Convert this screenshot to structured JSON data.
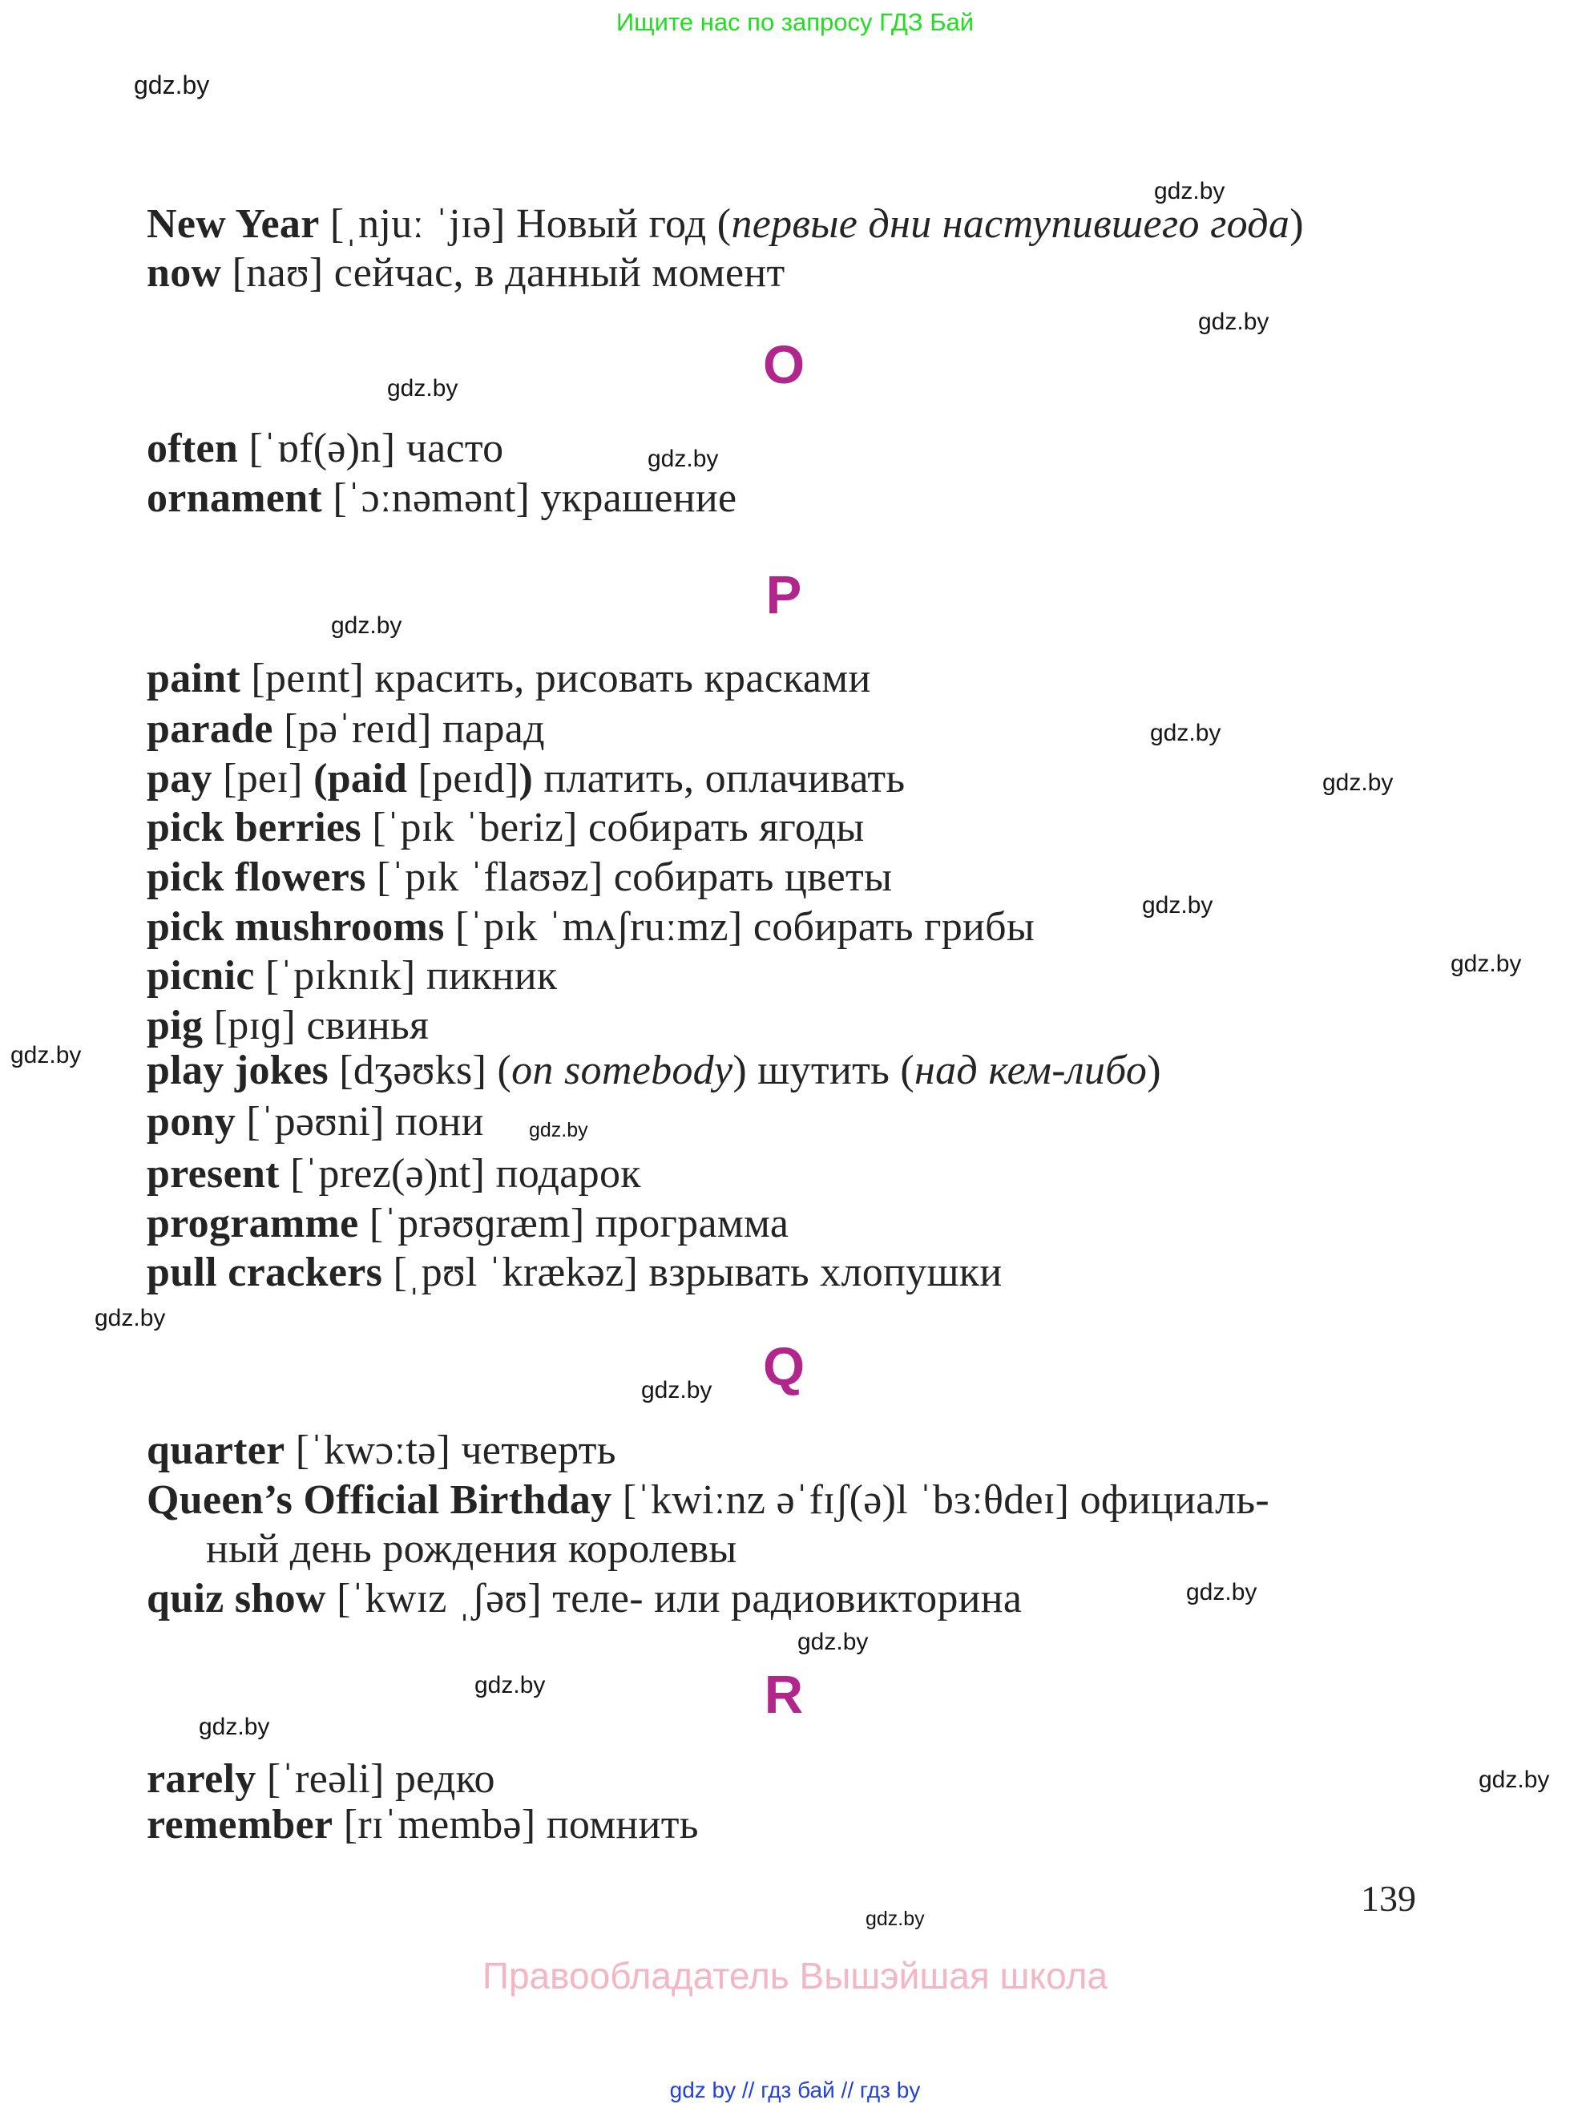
{
  "page": {
    "top_banner": "Ищите нас по запросу ГДЗ Бай",
    "watermark": "gdz.by",
    "page_number": "139",
    "copyright": "Правообладатель Вышэйшая школа",
    "footer_links": "gdz by  //  гдз бай  //  гдз by"
  },
  "colors": {
    "section_letter": "#b0268b",
    "banner_green": "#1fdf1f",
    "copyright_pink": "#f5b6c4",
    "footer_blue": "#2140e0",
    "body_text": "#242424"
  },
  "sections": [
    {
      "letter": "",
      "entries": [
        {
          "segments": [
            {
              "s": "b",
              "t": "New Year"
            },
            {
              "s": "r",
              "t": " [ˌnjuː ˈjɪə] Новый год ("
            },
            {
              "s": "i",
              "t": "первые дни наступившего года"
            },
            {
              "s": "r",
              "t": ")"
            }
          ]
        },
        {
          "segments": [
            {
              "s": "b",
              "t": "now"
            },
            {
              "s": "r",
              "t": " [naʊ]  сейчас, в данный момент"
            }
          ]
        }
      ]
    },
    {
      "letter": "O",
      "entries": [
        {
          "segments": [
            {
              "s": "b",
              "t": "often"
            },
            {
              "s": "r",
              "t": " [ˈɒf(ə)n] часто"
            }
          ]
        },
        {
          "segments": [
            {
              "s": "b",
              "t": "ornament"
            },
            {
              "s": "r",
              "t": " [ˈɔːnəmənt] украшение"
            }
          ]
        }
      ]
    },
    {
      "letter": "P",
      "entries": [
        {
          "segments": [
            {
              "s": "b",
              "t": "paint"
            },
            {
              "s": "r",
              "t": " [peɪnt] красить, рисовать красками"
            }
          ]
        },
        {
          "segments": [
            {
              "s": "b",
              "t": "parade"
            },
            {
              "s": "r",
              "t": " [pəˈreɪd] парад"
            }
          ]
        },
        {
          "segments": [
            {
              "s": "b",
              "t": "pay"
            },
            {
              "s": "r",
              "t": " [peɪ] "
            },
            {
              "s": "b",
              "t": "(paid"
            },
            {
              "s": "r",
              "t": " [peɪd]"
            },
            {
              "s": "b",
              "t": ")"
            },
            {
              "s": "r",
              "t": " платить, оплачивать"
            }
          ]
        },
        {
          "segments": [
            {
              "s": "b",
              "t": "pick berries"
            },
            {
              "s": "r",
              "t": " [ˈpɪk ˈberiz] собирать ягоды"
            }
          ]
        },
        {
          "segments": [
            {
              "s": "b",
              "t": "pick flowers"
            },
            {
              "s": "r",
              "t": " [ˈpɪk ˈflaʊəz] собирать цветы"
            }
          ]
        },
        {
          "segments": [
            {
              "s": "b",
              "t": "pick mushrooms"
            },
            {
              "s": "r",
              "t": " [ˈpɪk ˈmʌʃruːmz] собирать грибы"
            }
          ]
        },
        {
          "segments": [
            {
              "s": "b",
              "t": "picnic"
            },
            {
              "s": "r",
              "t": " [ˈpɪknɪk] пикник"
            }
          ]
        },
        {
          "segments": [
            {
              "s": "b",
              "t": "pig"
            },
            {
              "s": "r",
              "t": " [pɪɡ] свинья"
            }
          ]
        },
        {
          "segments": [
            {
              "s": "b",
              "t": "play jokes"
            },
            {
              "s": "r",
              "t": " [dʒəʊks] ("
            },
            {
              "s": "i",
              "t": "on somebody"
            },
            {
              "s": "r",
              "t": ") шутить ("
            },
            {
              "s": "i",
              "t": "над кем-либо"
            },
            {
              "s": "r",
              "t": ")"
            }
          ]
        },
        {
          "segments": [
            {
              "s": "b",
              "t": "pony"
            },
            {
              "s": "r",
              "t": " [ˈpəʊni] пони"
            }
          ]
        },
        {
          "segments": [
            {
              "s": "b",
              "t": "present"
            },
            {
              "s": "r",
              "t": " [ˈprez(ə)nt] подарок"
            }
          ]
        },
        {
          "segments": [
            {
              "s": "b",
              "t": "programme"
            },
            {
              "s": "r",
              "t": " [ˈprəʊɡræm] программа"
            }
          ]
        },
        {
          "segments": [
            {
              "s": "b",
              "t": "pull crackers"
            },
            {
              "s": "r",
              "t": " [ˌpʊl ˈkrækəz] взрывать хлопушки"
            }
          ]
        }
      ]
    },
    {
      "letter": "Q",
      "entries": [
        {
          "segments": [
            {
              "s": "b",
              "t": "quarter"
            },
            {
              "s": "r",
              "t": " [ˈkwɔːtə] четверть"
            }
          ]
        },
        {
          "segments": [
            {
              "s": "b",
              "t": "Queen’s Official Birthday"
            },
            {
              "s": "r",
              "t": " [ˈkwiːnz əˈfɪʃ(ə)l ˈbɜːθdeɪ]  официаль-"
            }
          ]
        },
        {
          "indent": true,
          "segments": [
            {
              "s": "r",
              "t": "ный день рождения королевы"
            }
          ]
        },
        {
          "segments": [
            {
              "s": "b",
              "t": "quiz show"
            },
            {
              "s": "r",
              "t": " [ˈkwɪz ˌʃəʊ] теле- или радиовикторина"
            }
          ]
        }
      ]
    },
    {
      "letter": "R",
      "entries": [
        {
          "segments": [
            {
              "s": "b",
              "t": "rarely"
            },
            {
              "s": "r",
              "t": " [ˈreəli] редко"
            }
          ]
        },
        {
          "segments": [
            {
              "s": "b",
              "t": "remember"
            },
            {
              "s": "r",
              "t": " [rɪˈmembə] помнить"
            }
          ]
        }
      ]
    }
  ]
}
